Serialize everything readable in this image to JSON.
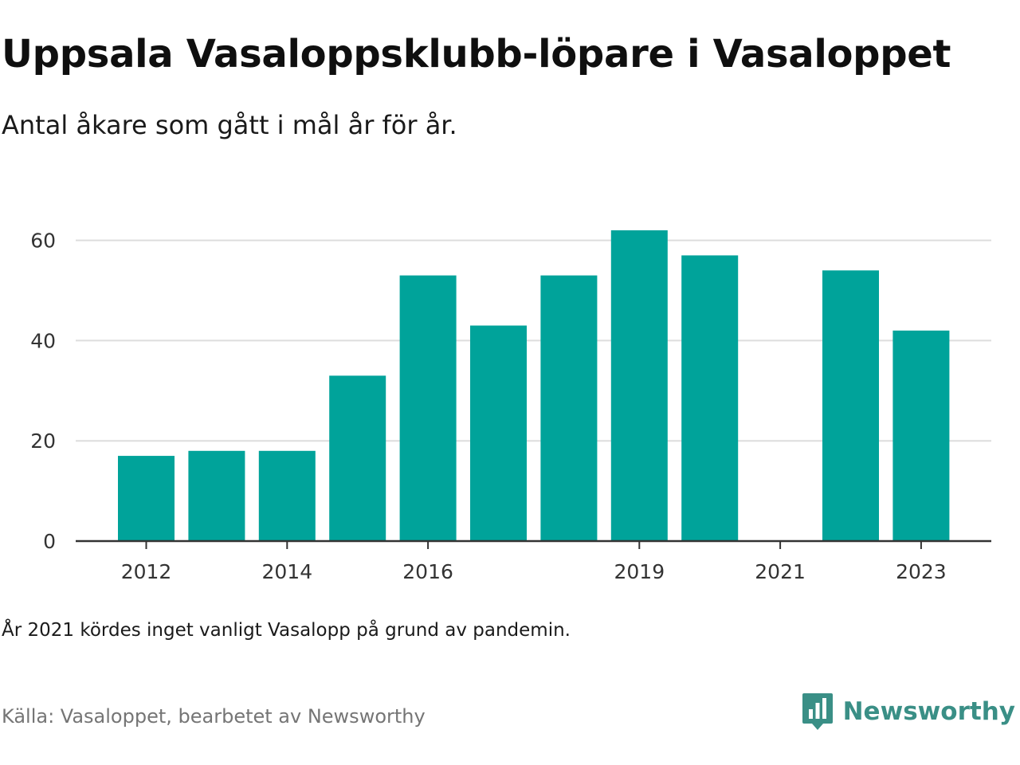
{
  "title": "Uppsala Vasaloppsklubb-löpare i Vasaloppet",
  "subtitle": "Antal åkare som gått i mål år för år.",
  "note": "År 2021 kördes inget vanligt Vasalopp på grund av pandemin.",
  "source": "Källa: Vasaloppet, bearbetet av Newsworthy",
  "brand": {
    "name": "Newsworthy",
    "icon": "newsworthy-logo-icon",
    "color": "#3a8f86"
  },
  "colors": {
    "bar": "#00a39a",
    "grid": "#dddddd",
    "axis": "#333333"
  },
  "chart_data": {
    "type": "bar",
    "title": "Uppsala Vasaloppsklubb-löpare i Vasaloppet",
    "subtitle": "Antal åkare som gått i mål år för år.",
    "xlabel": "",
    "ylabel": "",
    "categories": [
      2012,
      2013,
      2014,
      2015,
      2016,
      2017,
      2018,
      2019,
      2020,
      2021,
      2022,
      2023
    ],
    "values": [
      17,
      18,
      18,
      33,
      53,
      43,
      53,
      62,
      57,
      null,
      54,
      42
    ],
    "x_tick_labels": [
      "2012",
      "2014",
      "2016",
      "2019",
      "2021",
      "2023"
    ],
    "y_ticks": [
      0,
      20,
      40,
      60
    ],
    "ylim": [
      0,
      70
    ],
    "grid": true,
    "legend": "none"
  }
}
